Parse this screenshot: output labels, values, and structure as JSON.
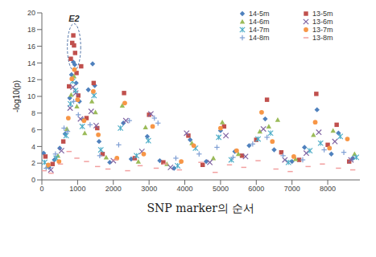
{
  "chart_data": {
    "type": "scatter",
    "x_label": "SNP marker의 순서",
    "y_label": "-log10(p)",
    "xlim": [
      0,
      8900
    ],
    "xticks": [
      0,
      1000,
      2000,
      3000,
      4000,
      5000,
      6000,
      7000,
      8000
    ],
    "ylim": [
      0,
      20
    ],
    "yticks": [
      0,
      2,
      4,
      6,
      8,
      10,
      12,
      14,
      16,
      18,
      20
    ],
    "grid": false,
    "legend": "upper right",
    "annotations": [
      {
        "text": "E2",
        "x": 900,
        "y": 19.3
      }
    ],
    "series": [
      {
        "name": "14-5m",
        "color": "#4f81bd",
        "marker": "diamond",
        "x": [
          50,
          200,
          350,
          500,
          650,
          780,
          830,
          880,
          920,
          960,
          1050,
          1150,
          1300,
          1420,
          1480,
          1600,
          1900,
          2280,
          2500,
          2950,
          3300,
          3700,
          4150,
          4600,
          5000,
          5400,
          5800,
          6250,
          6500,
          7000,
          7350,
          7700,
          8100,
          8300,
          8700
        ],
        "values": [
          3.2,
          1.5,
          2.4,
          3.8,
          5.5,
          9.8,
          12.6,
          14.1,
          13.8,
          11.6,
          9.4,
          7.2,
          10.8,
          13.9,
          11.3,
          4.6,
          2.1,
          6.8,
          2.5,
          5.2,
          2.3,
          1.4,
          4.8,
          2.2,
          5.9,
          3.4,
          4.1,
          7.3,
          3.6,
          2.2,
          3.9,
          8.4,
          3.1,
          5.6,
          2.6
        ]
      },
      {
        "name": "13-5m",
        "color": "#c0504d",
        "marker": "square",
        "x": [
          100,
          300,
          600,
          760,
          810,
          850,
          880,
          900,
          930,
          970,
          1020,
          1100,
          1250,
          1450,
          1550,
          1700,
          2300,
          2600,
          3000,
          3400,
          4100,
          4500,
          5100,
          5600,
          6000,
          6300,
          6700,
          7200,
          7680,
          8000,
          8250,
          8600
        ],
        "values": [
          2.8,
          1.9,
          4.6,
          11.2,
          14.5,
          16.4,
          17.3,
          16.1,
          15.2,
          12.8,
          10.1,
          13.6,
          7.4,
          11.6,
          6.2,
          3.1,
          10.4,
          2.6,
          7.8,
          2.1,
          5.3,
          1.8,
          6.4,
          2.9,
          4.8,
          9.6,
          3.3,
          2.4,
          10.3,
          4.2,
          6.6,
          2.2
        ]
      },
      {
        "name": "14-6m",
        "color": "#9bbb59",
        "marker": "triangle",
        "x": [
          150,
          450,
          700,
          820,
          900,
          980,
          1200,
          1400,
          1500,
          1800,
          2250,
          2700,
          2900,
          3500,
          4200,
          4800,
          5050,
          5500,
          6100,
          6350,
          6600,
          7100,
          7600,
          8150,
          8750
        ],
        "values": [
          1.6,
          2.9,
          6.1,
          10.2,
          12.4,
          8.8,
          5.6,
          9.4,
          8.1,
          2.7,
          8.9,
          2.2,
          6.3,
          1.9,
          4.4,
          2.6,
          6.9,
          3.1,
          5.8,
          6.4,
          7.2,
          2.5,
          5.4,
          5.9,
          3.1
        ]
      },
      {
        "name": "13-6m",
        "color": "#8064a2",
        "marker": "x",
        "x": [
          250,
          550,
          790,
          870,
          950,
          1080,
          1380,
          1520,
          2000,
          2350,
          2800,
          3050,
          3600,
          4050,
          4700,
          5150,
          5700,
          6200,
          6800,
          7400,
          7750,
          8200,
          8650
        ],
        "values": [
          1.2,
          3.5,
          8.6,
          11.1,
          10.4,
          7.3,
          8.2,
          6.5,
          2.3,
          7.1,
          3.4,
          7.9,
          1.5,
          5.6,
          2.1,
          5.3,
          2.8,
          6.1,
          2.4,
          3.2,
          5.7,
          4.6,
          2.4
        ]
      },
      {
        "name": "14-7m",
        "color": "#4bacc6",
        "marker": "asterisk",
        "x": [
          80,
          400,
          680,
          800,
          860,
          940,
          1130,
          1460,
          1650,
          2200,
          2650,
          2980,
          3800,
          4300,
          4950,
          5300,
          6050,
          6400,
          6900,
          7500,
          7800,
          8350,
          8800
        ],
        "values": [
          2.1,
          2.6,
          5.3,
          9.1,
          11.8,
          10.7,
          6.4,
          10.1,
          3.6,
          6.2,
          2.9,
          4.7,
          1.7,
          3.8,
          5.1,
          2.4,
          4.9,
          5.6,
          2.1,
          3.5,
          4.4,
          5.2,
          2.7
        ]
      },
      {
        "name": "13-7m",
        "color": "#f79646",
        "marker": "circle",
        "x": [
          180,
          480,
          740,
          840,
          910,
          1000,
          1180,
          1440,
          1580,
          2100,
          2320,
          2850,
          3100,
          3900,
          4250,
          5000,
          5450,
          6150,
          6450,
          7050,
          7650,
          8050,
          8550
        ],
        "values": [
          1.8,
          2.2,
          7.4,
          12.1,
          13.2,
          9.6,
          7.1,
          10.6,
          5.4,
          2.6,
          9.2,
          3.1,
          6.4,
          2.2,
          4.1,
          6.2,
          3.5,
          8.1,
          4.6,
          2.8,
          6.9,
          3.8,
          4.9
        ]
      },
      {
        "name": "14-8m",
        "color": "#7f9fd4",
        "marker": "plus",
        "x": [
          120,
          380,
          620,
          720,
          890,
          1020,
          1350,
          1620,
          2150,
          2450,
          3150,
          3250,
          3750,
          4400,
          4900,
          5350,
          5900,
          6300,
          6750,
          7300,
          7900,
          8450
        ],
        "values": [
          1.4,
          3.1,
          6.2,
          5.8,
          9.4,
          7.8,
          6.6,
          2.9,
          4.2,
          7.1,
          7.4,
          6.8,
          2.6,
          3.1,
          3.9,
          2.7,
          4.3,
          5.1,
          2.9,
          2.4,
          3.6,
          3.3
        ]
      },
      {
        "name": "13-8m",
        "color": "#f2a0a0",
        "marker": "dash",
        "x": [
          60,
          260,
          520,
          760,
          980,
          1250,
          1560,
          1850,
          2050,
          2400,
          2750,
          3200,
          3450,
          3850,
          4450,
          4850,
          5250,
          5650,
          6050,
          6550,
          6950,
          7450,
          7850,
          8300,
          8700
        ],
        "values": [
          1.1,
          0.8,
          1.9,
          3.4,
          2.6,
          2.2,
          1.6,
          1.3,
          2.4,
          1.1,
          1.7,
          1.4,
          1.9,
          1.2,
          2.1,
          0.9,
          1.8,
          1.5,
          2.3,
          1.3,
          1.0,
          1.6,
          1.9,
          1.4,
          1.2
        ]
      }
    ]
  }
}
